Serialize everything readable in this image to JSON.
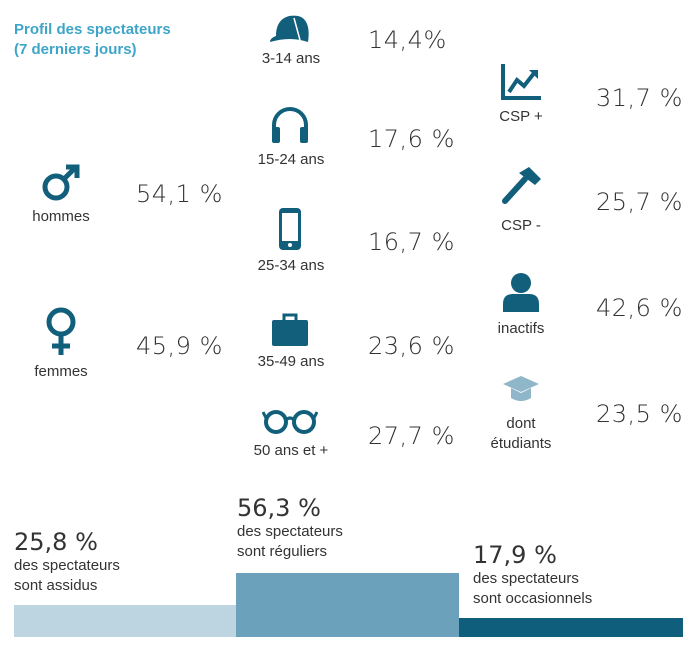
{
  "title_line1": "Profil des spectateurs",
  "title_line2": "(7 derniers jours)",
  "colors": {
    "title": "#3ea5c9",
    "icon": "#125f7c",
    "light": "#bcd5e1",
    "mid": "#6ba1ba",
    "dark": "#0f5f7c"
  },
  "gender": [
    {
      "icon": "male-icon",
      "label": "hommes",
      "value": "54,1 %"
    },
    {
      "icon": "female-icon",
      "label": "femmes",
      "value": "45,9 %"
    }
  ],
  "age": [
    {
      "icon": "cap-icon",
      "label": "3-14 ans",
      "value": "14,4%"
    },
    {
      "icon": "headphones-icon",
      "label": "15-24 ans",
      "value": "17,6 %"
    },
    {
      "icon": "phone-icon",
      "label": "25-34 ans",
      "value": "16,7 %"
    },
    {
      "icon": "briefcase-icon",
      "label": "35-49 ans",
      "value": "23,6 %"
    },
    {
      "icon": "glasses-icon",
      "label": "50 ans et +",
      "value": "27,7 %"
    }
  ],
  "csp": [
    {
      "icon": "chart-up-icon",
      "label": "CSP +",
      "value": "31,7 %"
    },
    {
      "icon": "hammer-icon",
      "label": "CSP -",
      "value": "25,7 %"
    },
    {
      "icon": "person-icon",
      "label": "inactifs",
      "value": "42,6 %"
    },
    {
      "icon": "graduation-cap-icon",
      "label": "dont étudiants",
      "label1": "dont",
      "label2": "étudiants",
      "value": "23,5 %"
    }
  ],
  "frequency": [
    {
      "value": "25,8 %",
      "pct": 25.8,
      "line1": "des spectateurs",
      "line2": "sont assidus"
    },
    {
      "value": "56,3 %",
      "pct": 56.3,
      "line1": "des spectateurs",
      "line2": "sont réguliers"
    },
    {
      "value": "17,9 %",
      "pct": 17.9,
      "line1": "des spectateurs",
      "line2": "sont occasionnels"
    }
  ]
}
